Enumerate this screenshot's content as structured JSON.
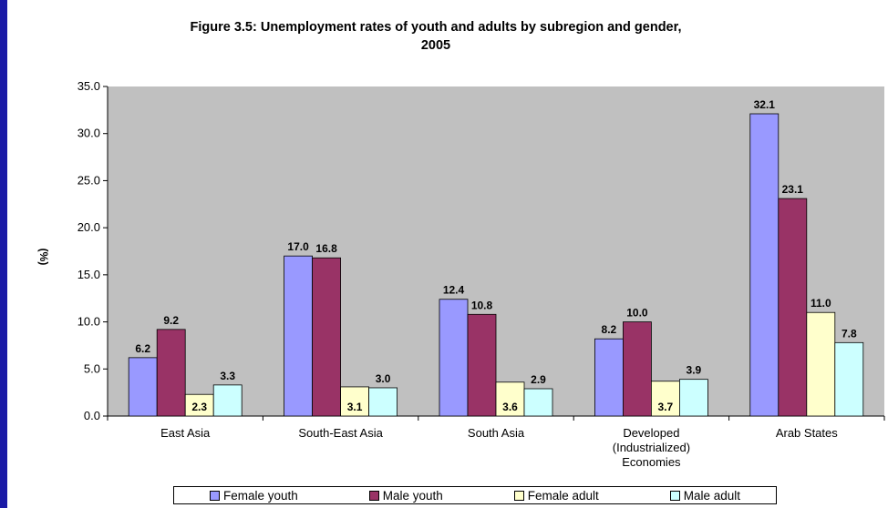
{
  "chart_data": {
    "type": "bar",
    "title": "Figure 3.5: Unemployment rates of youth and adults by subregion and gender,\n2005",
    "ylabel": "(%)",
    "xlabel": "",
    "ylim": [
      0,
      35
    ],
    "yticks": [
      "0.0",
      "5.0",
      "10.0",
      "15.0",
      "20.0",
      "25.0",
      "30.0",
      "35.0"
    ],
    "grid": false,
    "legend_position": "bottom",
    "categories": [
      "East Asia",
      "South-East Asia",
      "South Asia",
      "Developed\n(Industrialized)\nEconomies",
      "Arab States"
    ],
    "series": [
      {
        "name": "Female youth",
        "color": "#9999ff",
        "values": [
          6.2,
          17.0,
          12.4,
          8.2,
          32.1
        ],
        "labels": [
          "6.2",
          "17.0",
          "12.4",
          "8.2",
          "32.1"
        ]
      },
      {
        "name": "Male youth",
        "color": "#993366",
        "values": [
          9.2,
          16.8,
          10.8,
          10.0,
          23.1
        ],
        "labels": [
          "9.2",
          "16.8",
          "10.8",
          "10.0",
          "23.1"
        ]
      },
      {
        "name": "Female adult",
        "color": "#ffffcc",
        "values": [
          2.3,
          3.1,
          3.6,
          3.7,
          11.0
        ],
        "labels": [
          "2.3",
          "3.1",
          "3.6",
          "3.7",
          "11.0"
        ]
      },
      {
        "name": "Male adult",
        "color": "#ccffff",
        "values": [
          3.3,
          3.0,
          2.9,
          3.9,
          7.8
        ],
        "labels": [
          "3.3",
          "3.0",
          "2.9",
          "3.9",
          "7.8"
        ]
      }
    ],
    "plot_background": "#c0c0c0"
  }
}
